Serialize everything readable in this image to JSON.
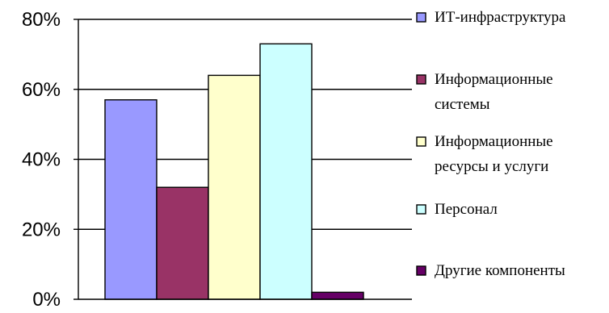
{
  "chart_data": {
    "type": "bar",
    "title": "",
    "xlabel": "",
    "ylabel": "",
    "ylim": [
      0,
      80
    ],
    "y_ticks": [
      "0%",
      "20%",
      "40%",
      "60%",
      "80%"
    ],
    "y_tick_values": [
      0,
      20,
      40,
      60,
      80
    ],
    "grid": true,
    "legend_position": "right",
    "series": [
      {
        "name": "ИТ-инфраструктура",
        "values": [
          57
        ],
        "color": "#9999FF"
      },
      {
        "name": "Информационные системы",
        "values": [
          32
        ],
        "color": "#993366"
      },
      {
        "name": "Информационные ресурсы и услуги",
        "values": [
          64
        ],
        "color": "#FFFFCC"
      },
      {
        "name": "Персонал",
        "values": [
          73
        ],
        "color": "#CCFFFF"
      },
      {
        "name": "Другие компоненты",
        "values": [
          2
        ],
        "color": "#660066"
      }
    ],
    "legend": [
      {
        "lines": [
          "ИТ-инфраструктура"
        ]
      },
      {
        "lines": [
          "Информационные",
          "системы"
        ]
      },
      {
        "lines": [
          "Информационные",
          "ресурсы и услуги"
        ]
      },
      {
        "lines": [
          "Персонал"
        ]
      },
      {
        "lines": [
          "Другие компоненты"
        ]
      }
    ]
  }
}
